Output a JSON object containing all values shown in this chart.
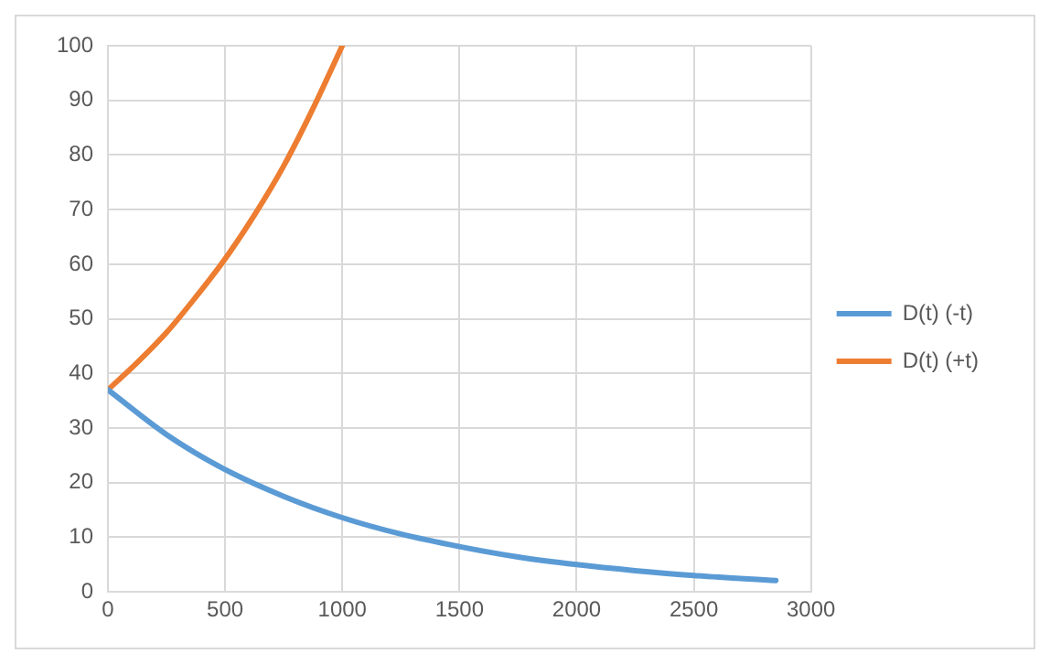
{
  "chart_data": {
    "type": "line",
    "xlim": [
      0,
      3000
    ],
    "xticks": [
      0,
      500,
      1000,
      1500,
      2000,
      2500,
      3000
    ],
    "ylim": [
      0,
      100
    ],
    "yticks": [
      0,
      10,
      20,
      30,
      40,
      50,
      60,
      70,
      80,
      90,
      100
    ],
    "grid": true,
    "legend": "right",
    "marker": "none",
    "line_style": "solid",
    "series": [
      {
        "name": "D(t) (-t)",
        "color": "#5b9bd5",
        "x": [
          0,
          250,
          500,
          750,
          1000,
          1250,
          1500,
          1750,
          2000,
          2250,
          2500,
          2850
        ],
        "values": [
          37,
          28.8,
          22.4,
          17.5,
          13.6,
          10.6,
          8.3,
          6.4,
          5.0,
          3.9,
          3.0,
          2.1
        ]
      },
      {
        "name": "D(t) (+t)",
        "color": "#ed7d31",
        "x": [
          0,
          125,
          250,
          375,
          500,
          625,
          750,
          875,
          1000
        ],
        "values": [
          37,
          42,
          47.5,
          54,
          61,
          69,
          78,
          88.5,
          100
        ]
      }
    ]
  }
}
